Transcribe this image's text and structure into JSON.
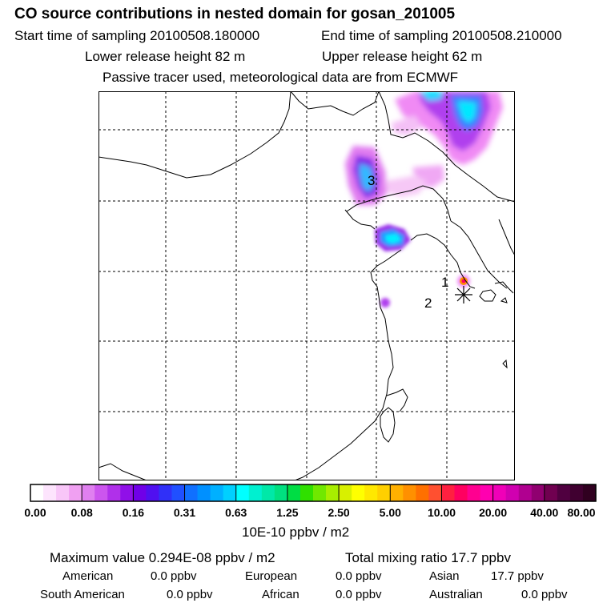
{
  "header": {
    "title": "CO  source contributions in nested domain for gosan_201005",
    "start_label": "Start time of sampling 20100508.180000",
    "end_label": "End time of sampling 20100508.210000",
    "lower_label": "Lower release height   82 m",
    "upper_label": "Upper release height   62 m",
    "note": "Passive tracer used, meteorological data are from ECMWF"
  },
  "map": {
    "markers": [
      {
        "label": "1"
      },
      {
        "label": "2"
      },
      {
        "label": "3"
      }
    ]
  },
  "colorbar": {
    "tick_labels": [
      "0.00",
      "0.08",
      "0.16",
      "0.31",
      "0.63",
      "1.25",
      "2.50",
      "5.00",
      "10.00",
      "20.00",
      "40.00",
      "80.00"
    ],
    "colors": [
      "#ffffff",
      "#fde4fd",
      "#f8c6f8",
      "#f0a0f2",
      "#e080f0",
      "#cc55ee",
      "#b030ea",
      "#9010e8",
      "#7000e8",
      "#5010f0",
      "#3030f8",
      "#2050ff",
      "#1070ff",
      "#0090ff",
      "#00b0ff",
      "#00d0ff",
      "#00ffff",
      "#00f0d0",
      "#00e8a8",
      "#00e080",
      "#00dd44",
      "#30e000",
      "#70e800",
      "#a8ee00",
      "#d8f000",
      "#ffff00",
      "#ffe800",
      "#ffd000",
      "#ffb000",
      "#ff9000",
      "#ff7000",
      "#ff5030",
      "#ff2040",
      "#ff0060",
      "#ff0090",
      "#ff00b0",
      "#f000b8",
      "#d000b0",
      "#b00090",
      "#900070",
      "#700050",
      "#500040",
      "#400030",
      "#300020"
    ],
    "unit": "10E-10 ppbv / m2"
  },
  "stats": {
    "max_value": "Maximum value  0.294E-08 ppbv / m2",
    "total_mixing": "Total mixing ratio      17.7 ppbv",
    "regions": [
      {
        "name": "American",
        "value": "0.0 ppbv"
      },
      {
        "name": "European",
        "value": "0.0 ppbv"
      },
      {
        "name": "Asian",
        "value": "17.7 ppbv"
      },
      {
        "name": "South American",
        "value": "0.0 ppbv"
      },
      {
        "name": "African",
        "value": "0.0 ppbv"
      },
      {
        "name": "Australian",
        "value": "0.0 ppbv"
      }
    ]
  }
}
